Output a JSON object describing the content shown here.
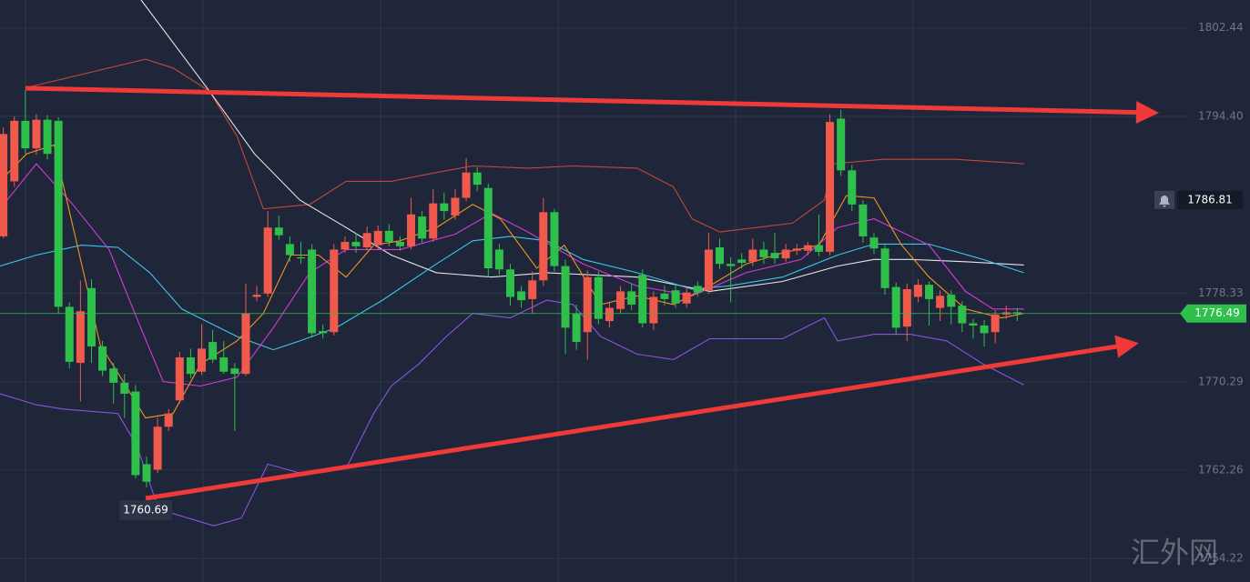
{
  "chart_data": {
    "type": "candlestick",
    "up_color": "#ef5a4d",
    "down_color": "#2fbf4b",
    "xlim": [
      -0.3,
      107.5
    ],
    "ylim": [
      1752.09,
      1804.98
    ],
    "yticks": [
      1802.44,
      {
        "value": 1794.4,
        "label": "1794.40"
      },
      1778.33,
      1770.29,
      1762.26,
      1754.22
    ],
    "grid": true,
    "alert": 1786.81,
    "watermark": "汇外网",
    "open": [
      1783.5,
      1788.5,
      1794.0,
      1791.5,
      1794.1,
      1794.0,
      1777.1,
      1772.0,
      1778.8,
      1773.5,
      1771.5,
      1770.2,
      1769.4,
      1762.8,
      1762.3,
      1766.2,
      1768.6,
      1772.5,
      1771.2,
      1773.9,
      1772.5,
      1771.5,
      1771.0,
      1778.0,
      1778.3,
      1784.3,
      1782.8,
      1781.6,
      1782.3,
      1774.9,
      1774.8,
      1782.3,
      1783.0,
      1782.5,
      1782.7,
      1784.0,
      1783.0,
      1782.6,
      1785.3,
      1783.3,
      1786.5,
      1785.4,
      1787.0,
      1789.3,
      1787.9,
      1782.3,
      1780.5,
      1778.5,
      1777.8,
      1779.5,
      1785.7,
      1780.8,
      1776.5,
      1774.8,
      1779.8,
      1775.8,
      1776.9,
      1778.5,
      1780.0,
      1775.6,
      1778.3,
      1778.6,
      1777.4,
      1779.0,
      1778.6,
      1782.5,
      1781.0,
      1781.4,
      1781.2,
      1782.3,
      1782.0,
      1781.5,
      1782.2,
      1782.2,
      1782.7,
      1782.1,
      1794.2,
      1789.5,
      1786.4,
      1783.4,
      1782.4,
      1778.9,
      1775.3,
      1778.0,
      1779.1,
      1777.0,
      1778.2,
      1777.2,
      1775.6,
      1775.4,
      1774.8,
      1776.4,
      1776.6
    ],
    "high": [
      1793.4,
      1794.4,
      1796.8,
      1794.6,
      1794.5,
      1794.3,
      1777.5,
      1779.5,
      1779.6,
      1774.0,
      1772.0,
      1771.0,
      1770.0,
      1763.5,
      1767.0,
      1767.8,
      1773.0,
      1773.3,
      1775.5,
      1775.0,
      1774.0,
      1772.0,
      1779.2,
      1779.0,
      1785.8,
      1785.4,
      1783.5,
      1783.0,
      1782.8,
      1775.5,
      1782.8,
      1783.5,
      1783.8,
      1784.4,
      1784.5,
      1784.6,
      1783.5,
      1787.0,
      1785.8,
      1787.8,
      1787.5,
      1787.8,
      1790.6,
      1789.8,
      1788.3,
      1782.8,
      1781.0,
      1779.0,
      1780.3,
      1787.0,
      1786.0,
      1781.4,
      1777.3,
      1780.4,
      1780.3,
      1777.5,
      1779.0,
      1779.2,
      1780.5,
      1778.5,
      1779.0,
      1779.0,
      1778.9,
      1779.4,
      1783.8,
      1783.3,
      1781.6,
      1782.0,
      1783.3,
      1783.0,
      1783.8,
      1782.8,
      1782.8,
      1783.0,
      1785.5,
      1794.6,
      1795.0,
      1790.0,
      1786.8,
      1783.8,
      1782.8,
      1779.3,
      1779.2,
      1779.6,
      1779.4,
      1778.6,
      1778.6,
      1777.6,
      1776.0,
      1775.9,
      1776.8,
      1777.2,
      1777.0
    ],
    "low": [
      1783.3,
      1788.0,
      1791.0,
      1790.9,
      1790.5,
      1776.5,
      1771.5,
      1768.5,
      1772.0,
      1770.8,
      1768.3,
      1767.0,
      1761.5,
      1760.69,
      1762.0,
      1765.8,
      1768.3,
      1770.6,
      1770.9,
      1772.0,
      1771.0,
      1765.8,
      1770.8,
      1777.6,
      1778.0,
      1783.2,
      1781.2,
      1781.0,
      1774.3,
      1774.2,
      1774.5,
      1782.0,
      1782.0,
      1782.2,
      1782.3,
      1782.6,
      1782.2,
      1782.3,
      1782.9,
      1783.0,
      1785.0,
      1785.0,
      1786.7,
      1787.6,
      1779.8,
      1780.0,
      1777.2,
      1777.0,
      1776.5,
      1779.0,
      1780.3,
      1772.8,
      1773.2,
      1772.3,
      1775.5,
      1775.2,
      1776.5,
      1776.8,
      1775.2,
      1775.0,
      1777.2,
      1777.0,
      1777.0,
      1778.0,
      1778.3,
      1780.5,
      1777.5,
      1780.6,
      1780.8,
      1781.0,
      1781.0,
      1781.2,
      1781.8,
      1781.8,
      1781.7,
      1781.8,
      1789.0,
      1785.8,
      1782.9,
      1781.9,
      1778.2,
      1774.6,
      1774.0,
      1777.5,
      1775.4,
      1775.8,
      1775.5,
      1774.8,
      1774.2,
      1773.5,
      1773.8,
      1776.0,
      1775.8
    ],
    "close": [
      1792.8,
      1794.0,
      1791.5,
      1794.1,
      1791.0,
      1777.1,
      1772.1,
      1776.7,
      1773.5,
      1771.3,
      1770.2,
      1769.2,
      1761.8,
      1761.2,
      1766.2,
      1767.4,
      1772.5,
      1771.0,
      1773.3,
      1772.3,
      1771.2,
      1771.0,
      1776.5,
      1778.2,
      1784.3,
      1783.6,
      1781.8,
      1781.5,
      1774.7,
      1774.7,
      1782.3,
      1783.0,
      1782.6,
      1783.8,
      1784.0,
      1783.0,
      1782.6,
      1785.5,
      1783.3,
      1786.5,
      1785.8,
      1787.0,
      1789.3,
      1788.2,
      1780.6,
      1780.5,
      1778.0,
      1777.7,
      1779.5,
      1785.7,
      1780.8,
      1775.2,
      1773.9,
      1779.8,
      1776.0,
      1777.0,
      1778.5,
      1777.3,
      1775.6,
      1778.0,
      1777.8,
      1777.4,
      1778.4,
      1778.4,
      1782.3,
      1781.0,
      1780.8,
      1781.1,
      1782.3,
      1781.6,
      1781.5,
      1782.3,
      1782.4,
      1782.7,
      1782.1,
      1793.9,
      1789.5,
      1786.4,
      1783.5,
      1782.4,
      1778.8,
      1775.2,
      1778.7,
      1779.1,
      1777.8,
      1778.1,
      1777.1,
      1775.6,
      1775.4,
      1774.7,
      1776.4,
      1776.6,
      1776.49
    ],
    "overlays": [
      {
        "color": "#c2493b",
        "x": [
          2.0,
          12.9,
          15.4,
          18.7,
          21.2,
          23.6,
          27.8,
          31.1,
          35.2,
          39.3,
          42.6,
          47.6,
          51.7,
          57.5,
          60.8,
          62.5,
          65.0,
          71.6,
          74.5,
          75.3,
          79.8,
          86.4,
          92.6
        ],
        "values": [
          1797.0,
          1799.6,
          1798.8,
          1796.7,
          1792.6,
          1786.0,
          1786.4,
          1788.5,
          1788.5,
          1789.3,
          1789.9,
          1789.7,
          1789.9,
          1789.7,
          1788.0,
          1785.1,
          1783.9,
          1784.7,
          1786.8,
          1790.1,
          1790.5,
          1790.5,
          1790.1
        ]
      },
      {
        "color": "#8c52e0",
        "x": [
          -0.3,
          3.0,
          5.5,
          10.4,
          12.1,
          14.1,
          19.1,
          21.6,
          24.0,
          26.9,
          31.1,
          33.6,
          35.2,
          37.7,
          40.2,
          42.6,
          46.0,
          49.3,
          51.7,
          54.2,
          57.5,
          60.8,
          64.1,
          70.7,
          74.5,
          75.7,
          79.0,
          82.3,
          85.6,
          88.9,
          92.6
        ],
        "values": [
          1769.2,
          1768.2,
          1767.8,
          1767.4,
          1764.5,
          1758.7,
          1757.2,
          1757.9,
          1762.8,
          1762.0,
          1762.4,
          1767.4,
          1769.9,
          1771.9,
          1774.4,
          1776.5,
          1776.1,
          1777.7,
          1777.3,
          1774.4,
          1772.8,
          1772.3,
          1774.2,
          1774.2,
          1776.1,
          1774.0,
          1774.6,
          1774.6,
          1774.0,
          1771.9,
          1770.0
        ]
      },
      {
        "color": "#e6e6e6",
        "x": [
          12.5,
          18.7,
          22.8,
          26.9,
          31.1,
          35.2,
          39.3,
          44.3,
          49.3,
          57.5,
          64.1,
          70.7,
          75.7,
          79.0,
          82.3,
          87.3,
          92.6
        ],
        "values": [
          1804.98,
          1796.7,
          1791.0,
          1786.8,
          1784.3,
          1781.8,
          1780.2,
          1779.8,
          1780.2,
          1779.8,
          1778.5,
          1779.4,
          1780.8,
          1781.4,
          1781.4,
          1781.2,
          1780.9
        ]
      },
      {
        "color": "#3cc6ea",
        "x": [
          -0.3,
          3.0,
          7.1,
          10.4,
          13.3,
          16.2,
          21.2,
          24.5,
          26.9,
          30.2,
          34.4,
          39.3,
          42.6,
          46.0,
          49.3,
          52.6,
          57.5,
          62.5,
          65.8,
          70.7,
          75.7,
          79.0,
          84.0,
          88.9,
          92.6
        ],
        "values": [
          1780.8,
          1781.8,
          1782.7,
          1782.5,
          1780.2,
          1776.9,
          1774.4,
          1773.2,
          1774.0,
          1775.2,
          1777.7,
          1781.0,
          1783.1,
          1783.5,
          1783.1,
          1781.4,
          1780.2,
          1778.7,
          1779.0,
          1779.8,
          1781.8,
          1782.8,
          1782.8,
          1781.4,
          1780.2
        ]
      },
      {
        "color": "#d33ad8",
        "x": [
          -0.3,
          3.0,
          6.3,
          9.6,
          12.1,
          14.5,
          17.9,
          21.2,
          24.5,
          27.8,
          31.1,
          36.0,
          41.0,
          44.3,
          47.6,
          52.6,
          57.5,
          62.5,
          67.4,
          72.4,
          75.7,
          79.0,
          84.0,
          87.3,
          89.8,
          92.6
        ],
        "values": [
          1786.0,
          1790.1,
          1786.4,
          1782.3,
          1776.1,
          1770.3,
          1769.9,
          1770.7,
          1775.2,
          1780.2,
          1782.3,
          1782.3,
          1783.7,
          1785.6,
          1783.9,
          1781.0,
          1779.0,
          1778.1,
          1780.2,
          1781.4,
          1784.3,
          1785.1,
          1782.7,
          1778.5,
          1776.9,
          1776.9
        ]
      },
      {
        "color": "#f2951f",
        "x": [
          -0.3,
          2.1,
          4.6,
          7.1,
          8.8,
          10.4,
          12.9,
          15.4,
          17.9,
          21.2,
          23.6,
          26.1,
          28.6,
          31.1,
          33.6,
          36.0,
          39.3,
          42.6,
          45.1,
          48.4,
          50.9,
          54.2,
          57.5,
          60.8,
          64.1,
          67.4,
          70.7,
          74.0,
          76.5,
          79.0,
          81.5,
          84.0,
          87.3,
          90.6,
          92.6
        ],
        "values": [
          1788.5,
          1791.0,
          1791.8,
          1781.0,
          1773.6,
          1771.1,
          1767.0,
          1767.4,
          1771.9,
          1774.0,
          1776.5,
          1781.8,
          1781.8,
          1779.8,
          1782.7,
          1783.1,
          1784.3,
          1786.4,
          1785.1,
          1780.6,
          1782.7,
          1777.3,
          1778.1,
          1777.3,
          1779.0,
          1781.0,
          1782.0,
          1782.7,
          1787.2,
          1787.0,
          1782.7,
          1779.8,
          1776.9,
          1776.1,
          1776.5
        ]
      }
    ]
  }
}
